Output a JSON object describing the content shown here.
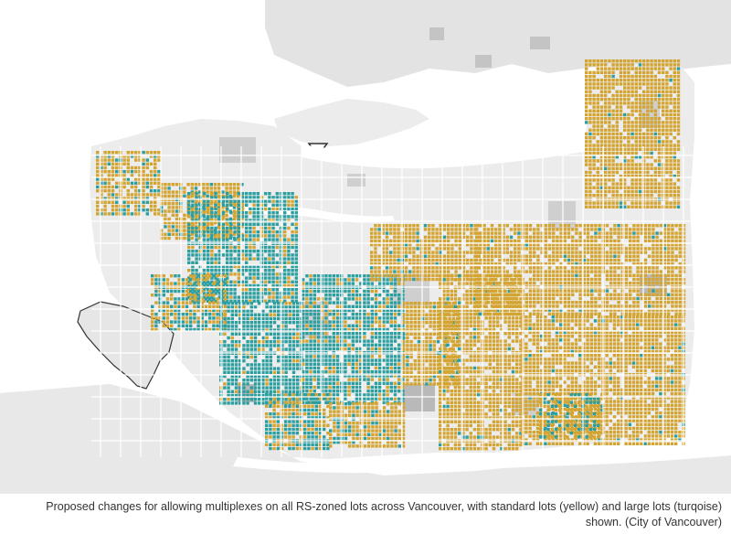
{
  "map": {
    "colors": {
      "background": "#ffffff",
      "land": "#ececec",
      "land_far": "#e3e3e3",
      "water": "#ffffff",
      "park": "#cfcfcf",
      "park_dark": "#b9b9b9",
      "road": "#ffffff",
      "standard_lot": "#d4a431",
      "large_lot": "#2b9ea0",
      "outline": "#333333"
    },
    "legend_items": [
      {
        "type": "standard_lot",
        "color_key": "standard_lot"
      },
      {
        "type": "large_lot",
        "color_key": "large_lot"
      }
    ]
  },
  "caption": {
    "line1": "Proposed changes for allowing multiplexes on all RS-zoned lots across Vancouver, with standard lots (yellow) and large lots (turqoise)",
    "line2": "shown. (City of Vancouver)"
  }
}
